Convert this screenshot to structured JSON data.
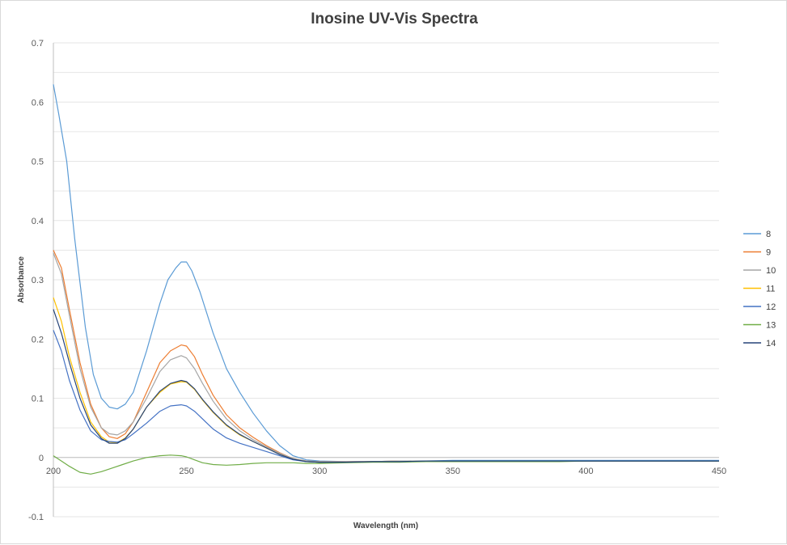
{
  "chart_data": {
    "type": "line",
    "title": "Inosine UV-Vis Spectra",
    "xlabel": "Wavelength (nm)",
    "ylabel": "Absorbance",
    "xlim": [
      200,
      450
    ],
    "ylim": [
      -0.1,
      0.7
    ],
    "xticks": [
      200,
      250,
      300,
      350,
      400,
      450
    ],
    "yticks": [
      -0.1,
      0,
      0.1,
      0.2,
      0.3,
      0.4,
      0.5,
      0.6,
      0.7
    ],
    "grid": true,
    "legend_position": "right",
    "series": [
      {
        "name": "8",
        "color": "#5b9bd5",
        "x": [
          200,
          202,
          205,
          208,
          212,
          215,
          218,
          221,
          224,
          227,
          230,
          235,
          240,
          243,
          246,
          248,
          250,
          252,
          255,
          260,
          265,
          270,
          275,
          280,
          285,
          290,
          295,
          300,
          310,
          320,
          330,
          340,
          350,
          360,
          370,
          380,
          390,
          400,
          410,
          420,
          430,
          440,
          450
        ],
        "y": [
          0.63,
          0.58,
          0.5,
          0.37,
          0.22,
          0.14,
          0.1,
          0.085,
          0.082,
          0.09,
          0.11,
          0.18,
          0.26,
          0.3,
          0.32,
          0.33,
          0.33,
          0.315,
          0.28,
          0.21,
          0.15,
          0.11,
          0.075,
          0.045,
          0.02,
          0.003,
          -0.004,
          -0.006,
          -0.007,
          -0.007,
          -0.006,
          -0.006,
          -0.005,
          -0.005,
          -0.005,
          -0.005,
          -0.005,
          -0.005,
          -0.005,
          -0.005,
          -0.005,
          -0.005,
          -0.005
        ]
      },
      {
        "name": "9",
        "color": "#ed7d31",
        "x": [
          200,
          203,
          206,
          210,
          214,
          218,
          221,
          224,
          227,
          230,
          235,
          240,
          244,
          248,
          250,
          253,
          256,
          260,
          265,
          270,
          275,
          280,
          285,
          290,
          295,
          300,
          310,
          320,
          330,
          340,
          350,
          360,
          370,
          380,
          390,
          400,
          410,
          420,
          430,
          440,
          450
        ],
        "y": [
          0.35,
          0.32,
          0.25,
          0.16,
          0.09,
          0.05,
          0.035,
          0.032,
          0.04,
          0.06,
          0.11,
          0.16,
          0.18,
          0.19,
          0.188,
          0.17,
          0.14,
          0.105,
          0.072,
          0.05,
          0.034,
          0.02,
          0.008,
          -0.002,
          -0.006,
          -0.007,
          -0.007,
          -0.007,
          -0.006,
          -0.006,
          -0.006,
          -0.006,
          -0.006,
          -0.006,
          -0.006,
          -0.006,
          -0.006,
          -0.006,
          -0.006,
          -0.006,
          -0.006
        ]
      },
      {
        "name": "10",
        "color": "#a5a5a5",
        "x": [
          200,
          203,
          206,
          210,
          214,
          218,
          221,
          224,
          227,
          230,
          235,
          240,
          244,
          248,
          250,
          253,
          256,
          260,
          265,
          270,
          275,
          280,
          285,
          290,
          295,
          300,
          310,
          320,
          330,
          340,
          350,
          360,
          370,
          380,
          390,
          400,
          410,
          420,
          430,
          440,
          450
        ],
        "y": [
          0.345,
          0.31,
          0.24,
          0.15,
          0.085,
          0.05,
          0.04,
          0.038,
          0.045,
          0.06,
          0.1,
          0.145,
          0.165,
          0.172,
          0.168,
          0.15,
          0.125,
          0.095,
          0.065,
          0.045,
          0.03,
          0.018,
          0.007,
          -0.002,
          -0.006,
          -0.007,
          -0.007,
          -0.007,
          -0.006,
          -0.006,
          -0.006,
          -0.006,
          -0.006,
          -0.006,
          -0.006,
          -0.006,
          -0.006,
          -0.006,
          -0.006,
          -0.006,
          -0.006
        ]
      },
      {
        "name": "11",
        "color": "#ffc000",
        "x": [
          200,
          203,
          206,
          210,
          214,
          218,
          221,
          224,
          227,
          230,
          235,
          240,
          244,
          248,
          250,
          253,
          256,
          260,
          265,
          270,
          275,
          280,
          285,
          290,
          295,
          300,
          310,
          320,
          330,
          340,
          350,
          360,
          370,
          380,
          390,
          400,
          410,
          420,
          430,
          440,
          450
        ],
        "y": [
          0.27,
          0.23,
          0.17,
          0.11,
          0.06,
          0.035,
          0.026,
          0.025,
          0.033,
          0.048,
          0.085,
          0.11,
          0.124,
          0.128,
          0.127,
          0.115,
          0.097,
          0.076,
          0.054,
          0.038,
          0.027,
          0.016,
          0.005,
          -0.003,
          -0.007,
          -0.008,
          -0.008,
          -0.007,
          -0.007,
          -0.006,
          -0.006,
          -0.006,
          -0.006,
          -0.006,
          -0.006,
          -0.006,
          -0.006,
          -0.006,
          -0.006,
          -0.006,
          -0.006
        ]
      },
      {
        "name": "12",
        "color": "#4472c4",
        "x": [
          200,
          203,
          206,
          210,
          214,
          218,
          221,
          224,
          227,
          230,
          235,
          240,
          244,
          248,
          250,
          253,
          256,
          260,
          265,
          270,
          275,
          280,
          285,
          290,
          295,
          300,
          310,
          320,
          330,
          340,
          350,
          360,
          370,
          380,
          390,
          400,
          410,
          420,
          430,
          440,
          450
        ],
        "y": [
          0.215,
          0.18,
          0.13,
          0.08,
          0.045,
          0.03,
          0.027,
          0.026,
          0.03,
          0.04,
          0.058,
          0.078,
          0.087,
          0.089,
          0.087,
          0.078,
          0.065,
          0.048,
          0.033,
          0.024,
          0.017,
          0.01,
          0.003,
          -0.004,
          -0.007,
          -0.008,
          -0.008,
          -0.007,
          -0.007,
          -0.006,
          -0.006,
          -0.006,
          -0.006,
          -0.006,
          -0.006,
          -0.006,
          -0.006,
          -0.006,
          -0.006,
          -0.006,
          -0.006
        ]
      },
      {
        "name": "13",
        "color": "#70ad47",
        "x": [
          200,
          203,
          206,
          210,
          214,
          218,
          222,
          226,
          230,
          235,
          240,
          244,
          248,
          250,
          253,
          256,
          260,
          265,
          270,
          275,
          280,
          285,
          290,
          295,
          300,
          310,
          320,
          330,
          340,
          350,
          360,
          370,
          380,
          390,
          400,
          410,
          420,
          430,
          440,
          450
        ],
        "y": [
          0.003,
          -0.006,
          -0.015,
          -0.025,
          -0.028,
          -0.024,
          -0.018,
          -0.012,
          -0.006,
          0.0,
          0.003,
          0.004,
          0.003,
          0.001,
          -0.004,
          -0.009,
          -0.012,
          -0.013,
          -0.012,
          -0.01,
          -0.009,
          -0.009,
          -0.009,
          -0.01,
          -0.01,
          -0.009,
          -0.008,
          -0.008,
          -0.007,
          -0.007,
          -0.007,
          -0.007,
          -0.007,
          -0.007,
          -0.006,
          -0.006,
          -0.006,
          -0.006,
          -0.006,
          -0.006
        ]
      },
      {
        "name": "14",
        "color": "#264478",
        "x": [
          200,
          203,
          206,
          210,
          214,
          218,
          221,
          224,
          227,
          230,
          235,
          240,
          244,
          248,
          250,
          253,
          256,
          260,
          265,
          270,
          275,
          280,
          285,
          290,
          295,
          300,
          310,
          320,
          330,
          340,
          350,
          360,
          370,
          380,
          390,
          400,
          410,
          420,
          430,
          440,
          450
        ],
        "y": [
          0.25,
          0.21,
          0.16,
          0.1,
          0.055,
          0.032,
          0.024,
          0.024,
          0.032,
          0.048,
          0.085,
          0.112,
          0.125,
          0.13,
          0.128,
          0.116,
          0.098,
          0.077,
          0.055,
          0.039,
          0.027,
          0.016,
          0.005,
          -0.003,
          -0.007,
          -0.008,
          -0.008,
          -0.007,
          -0.007,
          -0.006,
          -0.006,
          -0.006,
          -0.006,
          -0.006,
          -0.006,
          -0.006,
          -0.006,
          -0.006,
          -0.006,
          -0.006,
          -0.006
        ]
      }
    ]
  }
}
